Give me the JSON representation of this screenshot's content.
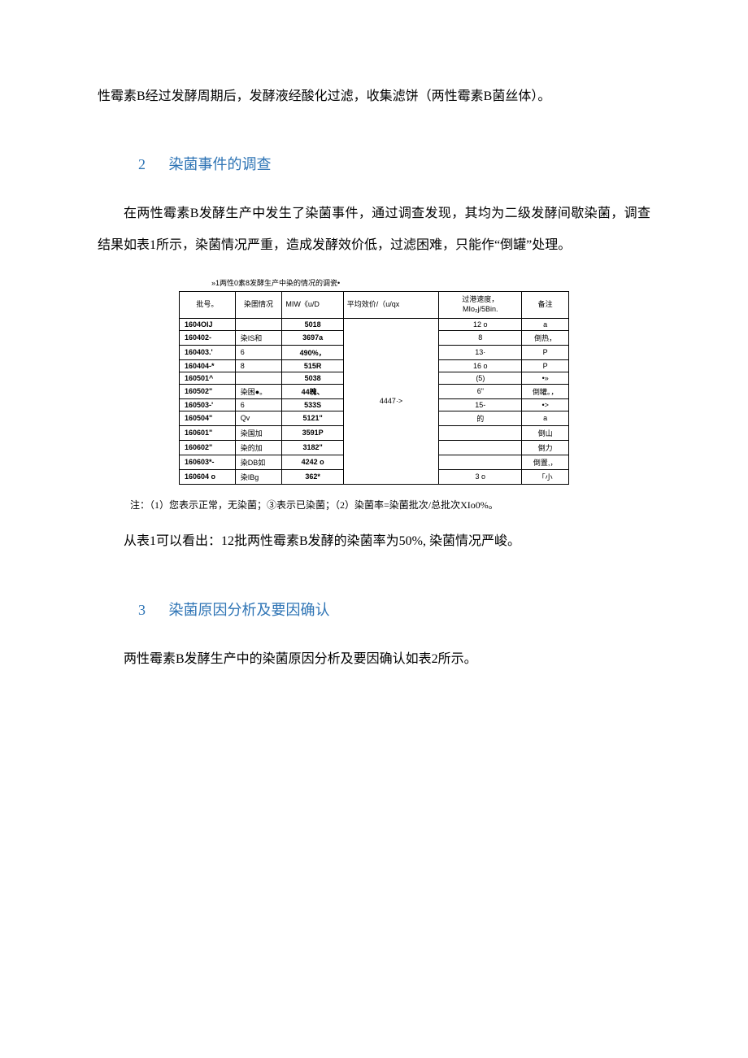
{
  "paragraph1": "性霉素B经过发酵周期后，发酵液经酸化过滤，收集滤饼（两性霉素B菌丝体）。",
  "section2": {
    "number": "2",
    "title": "染菌事件的调查",
    "intro": "在两性霉素B发酵生产中发生了染菌事件，通过调查发现，其均为二级发酵间歇染菌，调查结果如表1所示，染菌情况严重，造成发酵效价低，过滤困难，只能作“倒罐”处理。"
  },
  "table1": {
    "caption": "»1两性0素8发酵生产中染的情况的调瓷•",
    "headers": {
      "batch": "批号。",
      "status": "染圉情况",
      "miw": "MIW《u/D",
      "avg": "平均效价/（u/qx",
      "speed": "过港速度，\nMIo₂j/5Bin.",
      "remark": "备注"
    },
    "avg_value": "4447·>",
    "rows": [
      {
        "batch": "1604OIJ",
        "status": "",
        "miw": "5018",
        "speed": "12 o",
        "remark": "a"
      },
      {
        "batch": "160402-",
        "status": "染IS和",
        "miw": "3697a",
        "speed": "8",
        "remark": "倒热，"
      },
      {
        "batch": "160403.'",
        "status": "6",
        "miw": "490%，",
        "speed": "13·",
        "remark": "P"
      },
      {
        "batch": "160404-*",
        "status": "8",
        "miw": "515R",
        "speed": "16 o",
        "remark": "P"
      },
      {
        "batch": "160501^",
        "status": "",
        "miw": "5038",
        "speed": "(5)",
        "remark": "•»"
      },
      {
        "batch": "160502\"",
        "status": "染困●。",
        "miw": "44魄、",
        "speed": "6\"",
        "remark": "倒罐。，"
      },
      {
        "batch": "160503-'",
        "status": "6",
        "miw": "533S",
        "speed": "15-",
        "remark": "•>"
      },
      {
        "batch": "160504\"",
        "status": "Qv",
        "miw": "5121\"",
        "speed": "的",
        "remark": "a"
      },
      {
        "batch": "160601\"",
        "status": "染国加",
        "miw": "3591P",
        "speed": "",
        "remark": "倒山"
      },
      {
        "batch": "160602\"",
        "status": "染的加",
        "miw": "3182\"",
        "speed": "",
        "remark": "倒力"
      },
      {
        "batch": "160603*-",
        "status": "染DB如",
        "miw": "4242 o",
        "speed": "",
        "remark": "倒置,，"
      },
      {
        "batch": "160604 o",
        "status": "染IBg",
        "miw": "362*",
        "speed": "3 o",
        "remark": "「小"
      }
    ],
    "note": "注：（1）您表示正常，无染菌；③表示已染菌；（2）染菌率=染菌批次/总批次XIo0%。",
    "conclusion": "从表1可以看出：12批两性霉素B发酵的染菌率为50%, 染菌情况严峻。"
  },
  "section3": {
    "number": "3",
    "title": "染菌原因分析及要因确认",
    "intro": "两性霉素B发酵生产中的染菌原因分析及要因确认如表2所示。"
  }
}
